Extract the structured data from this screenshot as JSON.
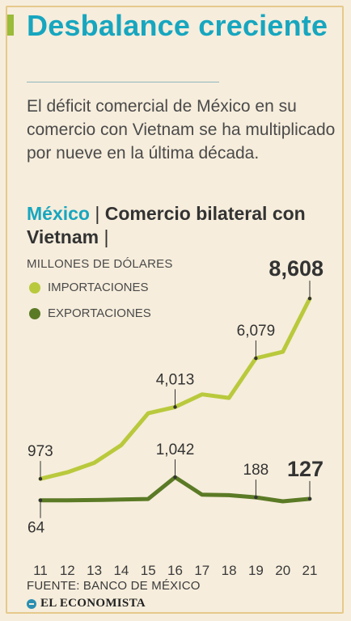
{
  "title": "Desbalance creciente",
  "subtitle": "El déficit comercial de México en su comercio con Vietnam se ha multiplicado por nueve en la última década.",
  "section": {
    "country": "México",
    "separator": "|",
    "label": "Comercio bilateral con Vietnam",
    "trailing_separator": "|"
  },
  "units": "MILLONES DE DÓLARES",
  "legend": [
    {
      "label": "IMPORTACIONES",
      "color": "#b9c93c"
    },
    {
      "label": "EXPORTACIONES",
      "color": "#5b7a25"
    }
  ],
  "source": "FUENTE: BANCO DE MÉXICO",
  "logo": "EL ECONOMISTA",
  "chart_data": {
    "type": "line",
    "x": [
      "11",
      "12",
      "13",
      "14",
      "15",
      "16",
      "17",
      "18",
      "19",
      "20",
      "21"
    ],
    "series": [
      {
        "name": "IMPORTACIONES",
        "color": "#b9c93c",
        "values": [
          973,
          1250,
          1650,
          2400,
          3750,
          4013,
          4550,
          4400,
          6079,
          6350,
          8608
        ]
      },
      {
        "name": "EXPORTACIONES",
        "color": "#5b7a25",
        "values": [
          64,
          66,
          75,
          95,
          120,
          1042,
          300,
          280,
          188,
          20,
          127
        ]
      }
    ],
    "annotations": [
      {
        "series": 0,
        "index": 0,
        "text": "973",
        "emphasis": false
      },
      {
        "series": 0,
        "index": 5,
        "text": "4,013",
        "emphasis": false
      },
      {
        "series": 0,
        "index": 8,
        "text": "6,079",
        "emphasis": false
      },
      {
        "series": 0,
        "index": 10,
        "text": "8,608",
        "emphasis": true
      },
      {
        "series": 1,
        "index": 0,
        "text": "64",
        "emphasis": false
      },
      {
        "series": 1,
        "index": 5,
        "text": "1,042",
        "emphasis": false
      },
      {
        "series": 1,
        "index": 8,
        "text": "188",
        "emphasis": false
      },
      {
        "series": 1,
        "index": 10,
        "text": "127",
        "emphasis": true
      }
    ],
    "grid": false,
    "legend_position": "top-left"
  }
}
